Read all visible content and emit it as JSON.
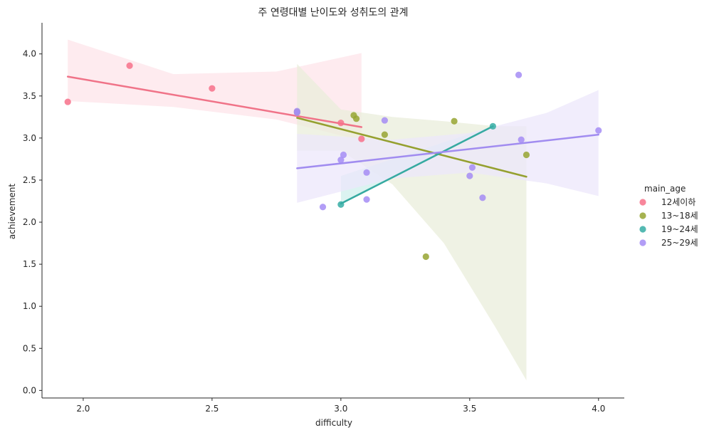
{
  "chart_data": {
    "type": "scatter",
    "title": "주 연령대별 난이도와 성취도의 관계",
    "xlabel": "difficulty",
    "ylabel": "achievement",
    "xlim": [
      1.84,
      4.1
    ],
    "ylim": [
      -0.09,
      4.37
    ],
    "xticks": [
      2.0,
      2.5,
      3.0,
      3.5,
      4.0
    ],
    "xtick_labels": [
      "2.0",
      "2.5",
      "3.0",
      "3.5",
      "4.0"
    ],
    "yticks": [
      0.0,
      0.5,
      1.0,
      1.5,
      2.0,
      2.5,
      3.0,
      3.5,
      4.0
    ],
    "ytick_labels": [
      "0.0",
      "0.5",
      "1.0",
      "1.5",
      "2.0",
      "2.5",
      "3.0",
      "3.5",
      "4.0"
    ],
    "grid": false,
    "legend": {
      "title": "main_age",
      "position": "right"
    },
    "series": [
      {
        "name": "12세이하",
        "color": "#f77189",
        "line_color": "#f07388",
        "band_color": "#fde4ea",
        "points": [
          [
            1.94,
            3.43
          ],
          [
            2.18,
            3.86
          ],
          [
            2.5,
            3.59
          ],
          [
            3.0,
            3.18
          ],
          [
            3.08,
            2.99
          ]
        ],
        "fit": [
          [
            1.94,
            3.73
          ],
          [
            3.08,
            3.13
          ]
        ],
        "band_upper": [
          [
            1.94,
            4.17
          ],
          [
            2.35,
            3.76
          ],
          [
            2.75,
            3.79
          ],
          [
            3.08,
            4.01
          ]
        ],
        "band_lower": [
          [
            1.94,
            3.44
          ],
          [
            2.35,
            3.37
          ],
          [
            2.75,
            3.22
          ],
          [
            3.08,
            2.97
          ]
        ]
      },
      {
        "name": "13~18세",
        "color": "#97a431",
        "line_color": "#95a02f",
        "band_color": "#eaeedb",
        "points": [
          [
            2.83,
            3.31
          ],
          [
            3.05,
            3.27
          ],
          [
            3.06,
            3.23
          ],
          [
            3.17,
            3.04
          ],
          [
            3.33,
            1.59
          ],
          [
            3.44,
            3.2
          ],
          [
            3.72,
            2.8
          ]
        ],
        "fit": [
          [
            2.83,
            3.24
          ],
          [
            3.72,
            2.54
          ]
        ],
        "band_upper": [
          [
            2.83,
            3.88
          ],
          [
            3.0,
            3.34
          ],
          [
            3.2,
            3.25
          ],
          [
            3.4,
            3.2
          ],
          [
            3.6,
            3.14
          ],
          [
            3.72,
            3.14
          ]
        ],
        "band_lower": [
          [
            2.83,
            2.85
          ],
          [
            3.0,
            2.85
          ],
          [
            3.2,
            2.45
          ],
          [
            3.4,
            1.75
          ],
          [
            3.6,
            0.75
          ],
          [
            3.72,
            0.12
          ]
        ]
      },
      {
        "name": "19~24세",
        "color": "#36ada4",
        "line_color": "#36aaa1",
        "band_color": "#cfefec",
        "points": [
          [
            3.0,
            2.21
          ],
          [
            3.59,
            3.14
          ]
        ],
        "fit": [
          [
            3.0,
            2.22
          ],
          [
            3.59,
            3.14
          ]
        ],
        "band_upper": [
          [
            3.0,
            2.55
          ],
          [
            3.59,
            3.14
          ]
        ],
        "band_lower": [
          [
            3.0,
            2.22
          ],
          [
            3.59,
            3.14
          ]
        ]
      },
      {
        "name": "25~29세",
        "color": "#a48cf4",
        "line_color": "#a18cf0",
        "band_color": "#ece7fb",
        "points": [
          [
            2.83,
            3.32
          ],
          [
            2.83,
            3.3
          ],
          [
            2.93,
            2.18
          ],
          [
            3.0,
            2.74
          ],
          [
            3.01,
            2.8
          ],
          [
            3.1,
            2.59
          ],
          [
            3.1,
            2.27
          ],
          [
            3.17,
            3.21
          ],
          [
            3.5,
            2.55
          ],
          [
            3.51,
            2.65
          ],
          [
            3.55,
            2.29
          ],
          [
            3.69,
            3.75
          ],
          [
            3.7,
            2.98
          ],
          [
            4.0,
            3.09
          ]
        ],
        "fit": [
          [
            2.83,
            2.64
          ],
          [
            4.0,
            3.04
          ]
        ],
        "band_upper": [
          [
            2.83,
            3.05
          ],
          [
            3.2,
            2.98
          ],
          [
            3.5,
            3.06
          ],
          [
            3.8,
            3.3
          ],
          [
            4.0,
            3.57
          ]
        ],
        "band_lower": [
          [
            2.83,
            2.23
          ],
          [
            3.2,
            2.52
          ],
          [
            3.5,
            2.59
          ],
          [
            3.8,
            2.46
          ],
          [
            4.0,
            2.31
          ]
        ]
      }
    ]
  }
}
